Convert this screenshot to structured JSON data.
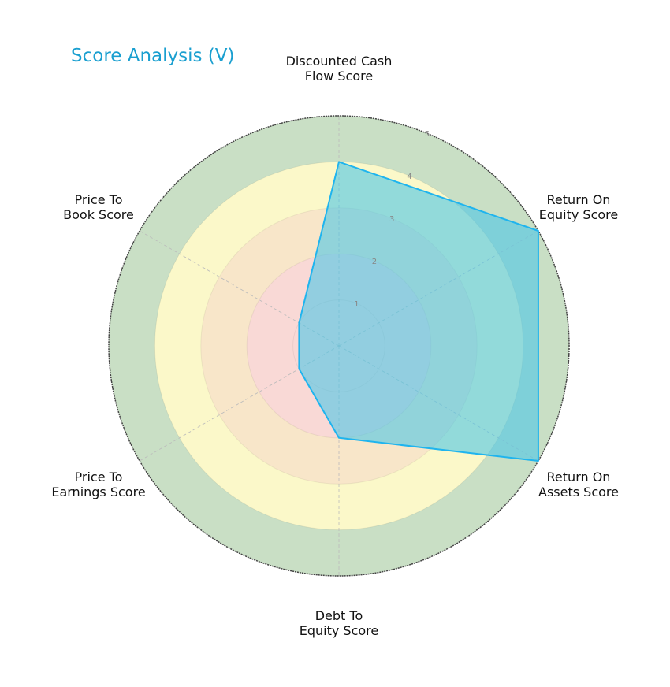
{
  "title": "Score Analysis (V)",
  "colors": {
    "title": "#1a9fd0",
    "polygon_fill": "#4cc6e6",
    "polygon_edge": "#1fb4ee",
    "band_green": "#c9dfc5",
    "band_yellow": "#fbf8c9",
    "band_orange": "#f8e6c9",
    "band_red": "#f9d9d6"
  },
  "chart_data": {
    "type": "radar",
    "title": "Score Analysis (V)",
    "categories": [
      "Discounted Cash Flow Score",
      "Return On Equity Score",
      "Return On Assets Score",
      "Debt To Equity Score",
      "Price To Earnings Score",
      "Price To Book Score"
    ],
    "series": [
      {
        "name": "V",
        "values": [
          4,
          5,
          5,
          2,
          1,
          1
        ]
      }
    ],
    "rlim": [
      0,
      5
    ],
    "r_ticks": [
      "1",
      "2",
      "3",
      "4",
      "5"
    ],
    "bands": [
      {
        "from": 0,
        "to": 1,
        "color": "#f9d9d6"
      },
      {
        "from": 1,
        "to": 2,
        "color": "#f9d9d6"
      },
      {
        "from": 2,
        "to": 3,
        "color": "#f8e6c9"
      },
      {
        "from": 3,
        "to": 4,
        "color": "#fbf8c9"
      },
      {
        "from": 4,
        "to": 5,
        "color": "#c9dfc5"
      }
    ],
    "grid": true,
    "legend": "none"
  },
  "labels": {
    "dcf": "Discounted Cash\nFlow Score",
    "roe": "Return On\nEquity Score",
    "roa": "Return On\nAssets Score",
    "de": "Debt To\nEquity Score",
    "pe": "Price To\nEarnings Score",
    "pb": "Price To\nBook Score"
  },
  "ticks": {
    "t1": "1",
    "t2": "2",
    "t3": "3",
    "t4": "4",
    "t5": "5"
  }
}
